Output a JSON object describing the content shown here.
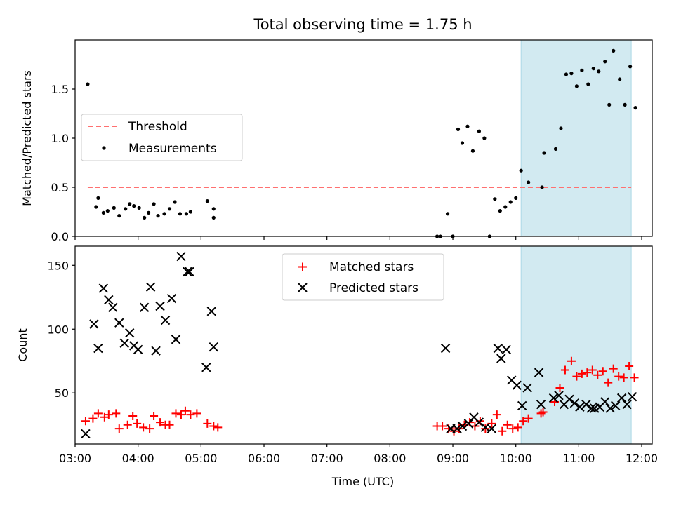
{
  "title": "Total observing time = 1.75 h",
  "xlabel": "Time (UTC)",
  "colors": {
    "threshold": "#ff7070",
    "measurement": "#000000",
    "matched": "#ff0000",
    "predicted": "#000000",
    "shade": "#add8e6"
  },
  "chart_data": [
    {
      "type": "scatter",
      "ylabel": "Matched/Predicted stars",
      "xlim": [
        "03:00",
        "12:10"
      ],
      "ylim": [
        0,
        2.0
      ],
      "yticks": [
        0.0,
        0.5,
        1.0,
        1.5
      ],
      "ytick_labels": [
        "0.0",
        "0.5",
        "1.0",
        "1.5"
      ],
      "shaded_span": [
        "10:05",
        "11:50"
      ],
      "legend": {
        "placement": "center-left",
        "entries": [
          "Threshold",
          "Measurements"
        ]
      },
      "threshold": {
        "name": "Threshold",
        "value": 0.5,
        "x_range": [
          "03:12",
          "11:50"
        ]
      },
      "series": [
        {
          "name": "Measurements",
          "marker": "dot",
          "points": [
            [
              "03:12",
              1.55
            ],
            [
              "03:20",
              0.3
            ],
            [
              "03:22",
              0.39
            ],
            [
              "03:27",
              0.24
            ],
            [
              "03:31",
              0.26
            ],
            [
              "03:37",
              0.29
            ],
            [
              "03:42",
              0.21
            ],
            [
              "03:48",
              0.28
            ],
            [
              "03:52",
              0.33
            ],
            [
              "03:56",
              0.31
            ],
            [
              "04:01",
              0.29
            ],
            [
              "04:06",
              0.19
            ],
            [
              "04:10",
              0.24
            ],
            [
              "04:15",
              0.33
            ],
            [
              "04:19",
              0.21
            ],
            [
              "04:25",
              0.23
            ],
            [
              "04:30",
              0.28
            ],
            [
              "04:35",
              0.35
            ],
            [
              "04:40",
              0.23
            ],
            [
              "04:46",
              0.23
            ],
            [
              "04:50",
              0.25
            ],
            [
              "05:06",
              0.36
            ],
            [
              "05:12",
              0.28
            ],
            [
              "05:12",
              0.19
            ],
            [
              "08:45",
              0.0
            ],
            [
              "08:48",
              0.0
            ],
            [
              "08:55",
              0.23
            ],
            [
              "09:00",
              0.0
            ],
            [
              "09:05",
              1.09
            ],
            [
              "09:09",
              0.95
            ],
            [
              "09:14",
              1.12
            ],
            [
              "09:19",
              0.87
            ],
            [
              "09:25",
              1.07
            ],
            [
              "09:30",
              1.0
            ],
            [
              "09:35",
              0.0
            ],
            [
              "09:40",
              0.38
            ],
            [
              "09:45",
              0.26
            ],
            [
              "09:50",
              0.3
            ],
            [
              "09:55",
              0.35
            ],
            [
              "10:00",
              0.39
            ],
            [
              "10:05",
              0.67
            ],
            [
              "10:12",
              0.55
            ],
            [
              "10:25",
              0.5
            ],
            [
              "10:27",
              0.85
            ],
            [
              "10:38",
              0.89
            ],
            [
              "10:43",
              1.1
            ],
            [
              "10:48",
              1.65
            ],
            [
              "10:53",
              1.66
            ],
            [
              "10:58",
              1.53
            ],
            [
              "11:03",
              1.69
            ],
            [
              "11:09",
              1.55
            ],
            [
              "11:14",
              1.71
            ],
            [
              "11:19",
              1.68
            ],
            [
              "11:25",
              1.78
            ],
            [
              "11:29",
              1.34
            ],
            [
              "11:33",
              1.89
            ],
            [
              "11:39",
              1.6
            ],
            [
              "11:44",
              1.34
            ],
            [
              "11:49",
              1.73
            ],
            [
              "11:54",
              1.31
            ]
          ]
        }
      ]
    },
    {
      "type": "scatter",
      "ylabel": "Count",
      "xlim": [
        "03:00",
        "12:10"
      ],
      "ylim": [
        10,
        165
      ],
      "yticks": [
        50,
        100,
        150
      ],
      "ytick_labels": [
        "50",
        "100",
        "150"
      ],
      "xticks": [
        "03:00",
        "04:00",
        "05:00",
        "06:00",
        "07:00",
        "08:00",
        "09:00",
        "10:00",
        "11:00",
        "12:00"
      ],
      "shaded_span": [
        "10:05",
        "11:50"
      ],
      "legend": {
        "placement": "top-center",
        "entries": [
          "Matched stars",
          "Predicted stars"
        ]
      },
      "series": [
        {
          "name": "Matched stars",
          "marker": "plus",
          "points": [
            [
              "03:10",
              28
            ],
            [
              "03:17",
              30
            ],
            [
              "03:22",
              34
            ],
            [
              "03:28",
              31
            ],
            [
              "03:32",
              33
            ],
            [
              "03:39",
              34
            ],
            [
              "03:42",
              22
            ],
            [
              "03:50",
              25
            ],
            [
              "03:55",
              32
            ],
            [
              "03:59",
              26
            ],
            [
              "04:05",
              23
            ],
            [
              "04:11",
              22
            ],
            [
              "04:15",
              32
            ],
            [
              "04:21",
              27
            ],
            [
              "04:26",
              25
            ],
            [
              "04:30",
              25
            ],
            [
              "04:36",
              34
            ],
            [
              "04:41",
              33
            ],
            [
              "04:45",
              36
            ],
            [
              "04:50",
              33
            ],
            [
              "04:56",
              34
            ],
            [
              "05:06",
              26
            ],
            [
              "05:12",
              24
            ],
            [
              "05:16",
              23
            ],
            [
              "08:45",
              24
            ],
            [
              "08:50",
              24
            ],
            [
              "08:56",
              22
            ],
            [
              "09:01",
              20
            ],
            [
              "09:06",
              22
            ],
            [
              "09:11",
              25
            ],
            [
              "09:16",
              27
            ],
            [
              "09:21",
              24
            ],
            [
              "09:26",
              28
            ],
            [
              "09:31",
              22
            ],
            [
              "09:37",
              26
            ],
            [
              "09:42",
              33
            ],
            [
              "09:47",
              20
            ],
            [
              "09:52",
              25
            ],
            [
              "09:57",
              22
            ],
            [
              "10:02",
              23
            ],
            [
              "10:07",
              28
            ],
            [
              "10:12",
              30
            ],
            [
              "10:24",
              34
            ],
            [
              "10:26",
              35
            ],
            [
              "10:37",
              43
            ],
            [
              "10:42",
              54
            ],
            [
              "10:47",
              68
            ],
            [
              "10:53",
              75
            ],
            [
              "10:58",
              63
            ],
            [
              "11:03",
              65
            ],
            [
              "11:08",
              66
            ],
            [
              "11:13",
              68
            ],
            [
              "11:18",
              64
            ],
            [
              "11:23",
              67
            ],
            [
              "11:28",
              58
            ],
            [
              "11:33",
              69
            ],
            [
              "11:38",
              63
            ],
            [
              "11:43",
              62
            ],
            [
              "11:48",
              71
            ],
            [
              "11:53",
              62
            ]
          ]
        },
        {
          "name": "Predicted stars",
          "marker": "x",
          "points": [
            [
              "03:10",
              18
            ],
            [
              "03:18",
              104
            ],
            [
              "03:22",
              85
            ],
            [
              "03:27",
              132
            ],
            [
              "03:32",
              123
            ],
            [
              "03:36",
              117
            ],
            [
              "03:42",
              105
            ],
            [
              "03:47",
              89
            ],
            [
              "03:52",
              97
            ],
            [
              "03:56",
              87
            ],
            [
              "04:00",
              84
            ],
            [
              "04:06",
              117
            ],
            [
              "04:12",
              133
            ],
            [
              "04:17",
              83
            ],
            [
              "04:21",
              118
            ],
            [
              "04:26",
              107
            ],
            [
              "04:32",
              124
            ],
            [
              "04:36",
              92
            ],
            [
              "04:41",
              157
            ],
            [
              "04:47",
              145
            ],
            [
              "04:49",
              145
            ],
            [
              "05:05",
              70
            ],
            [
              "05:10",
              114
            ],
            [
              "05:12",
              86
            ],
            [
              "08:53",
              85
            ],
            [
              "08:58",
              22
            ],
            [
              "09:04",
              22
            ],
            [
              "09:09",
              24
            ],
            [
              "09:15",
              26
            ],
            [
              "09:20",
              31
            ],
            [
              "09:25",
              27
            ],
            [
              "09:31",
              23
            ],
            [
              "09:37",
              22
            ],
            [
              "09:43",
              85
            ],
            [
              "09:46",
              77
            ],
            [
              "09:51",
              84
            ],
            [
              "09:56",
              60
            ],
            [
              "10:01",
              56
            ],
            [
              "10:06",
              40
            ],
            [
              "10:11",
              54
            ],
            [
              "10:22",
              66
            ],
            [
              "10:24",
              41
            ],
            [
              "10:36",
              46
            ],
            [
              "10:41",
              48
            ],
            [
              "10:46",
              41
            ],
            [
              "10:51",
              45
            ],
            [
              "10:56",
              42
            ],
            [
              "11:01",
              39
            ],
            [
              "11:07",
              41
            ],
            [
              "11:12",
              38
            ],
            [
              "11:15",
              38
            ],
            [
              "11:20",
              39
            ],
            [
              "11:25",
              43
            ],
            [
              "11:30",
              38
            ],
            [
              "11:35",
              40
            ],
            [
              "11:41",
              46
            ],
            [
              "11:46",
              41
            ],
            [
              "11:51",
              47
            ]
          ]
        }
      ]
    }
  ]
}
